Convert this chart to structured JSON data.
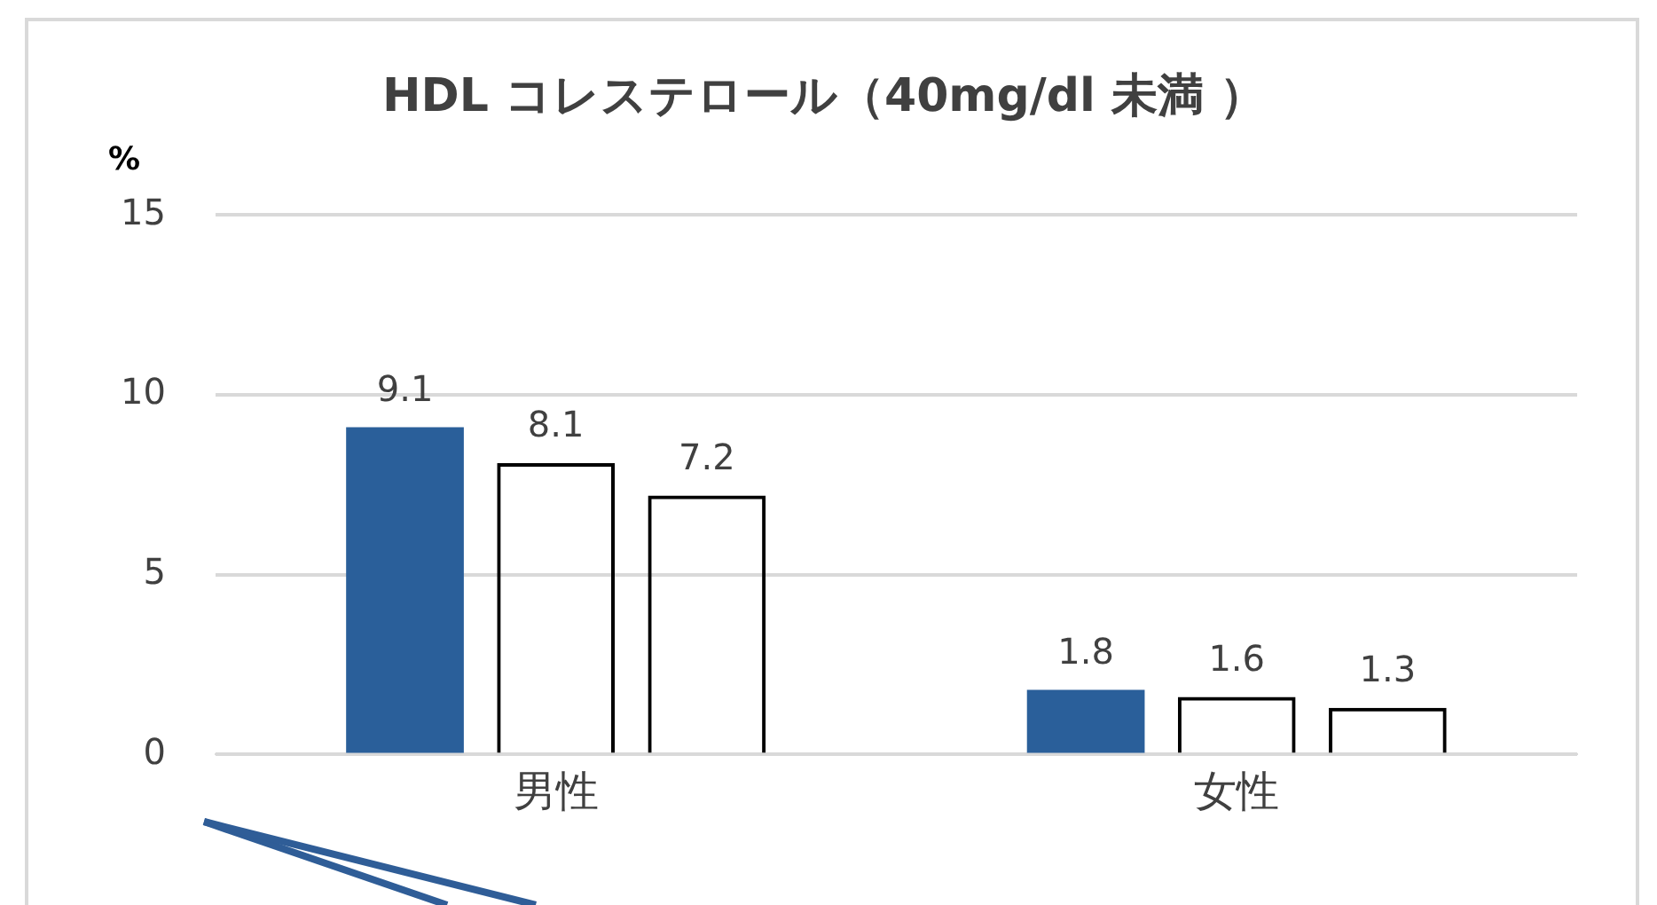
{
  "chart_data": {
    "type": "bar",
    "title": "HDL コレステロール（40mg/dl 未満 ）",
    "ylabel": "%",
    "categories": [
      "男性",
      "女性"
    ],
    "series": [
      {
        "color": "#2a5f9a",
        "values": [
          9.1,
          1.8
        ]
      },
      {
        "color": "#000000",
        "values": [
          8.1,
          1.6
        ]
      },
      {
        "color": "#000000",
        "values": [
          7.2,
          1.3
        ]
      }
    ],
    "ylim": [
      0,
      15
    ],
    "yticks": [
      0,
      5,
      10,
      15
    ],
    "grid": "y",
    "legend": false,
    "data_labels": true
  }
}
